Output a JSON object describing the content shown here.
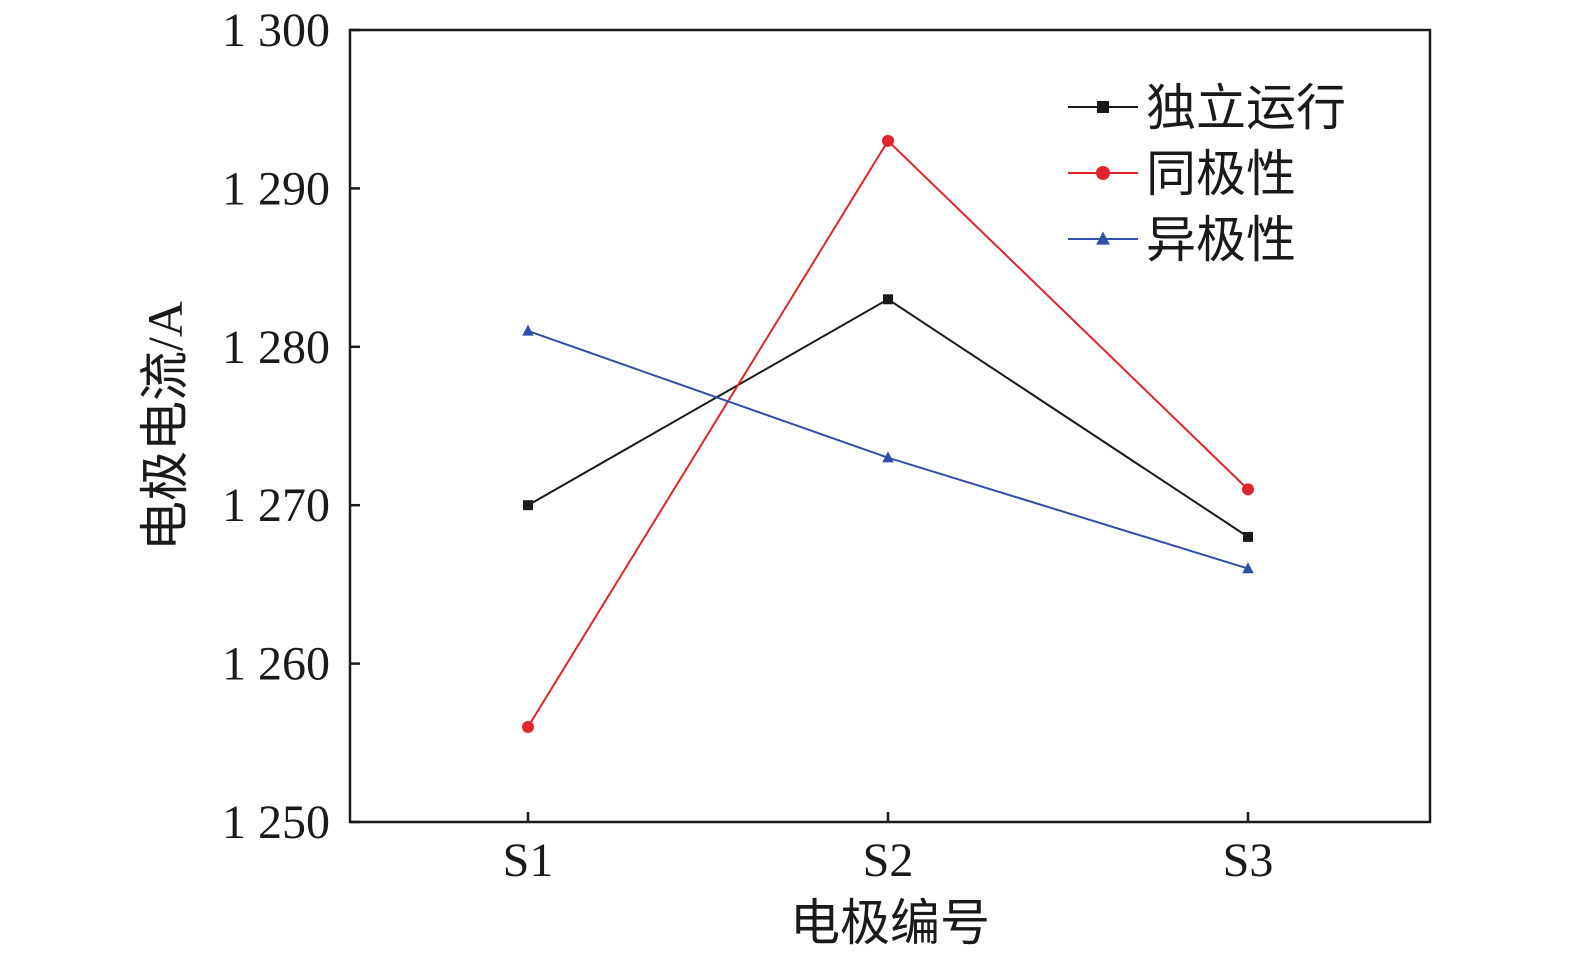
{
  "chart_data": {
    "type": "line",
    "title": "",
    "xlabel": "电极编号",
    "ylabel": "电极电流/A",
    "categories": [
      "S1",
      "S2",
      "S3"
    ],
    "ylim": [
      1250,
      1300
    ],
    "yticks": [
      1250,
      1260,
      1270,
      1280,
      1290,
      1300
    ],
    "ytick_labels": [
      "1 250",
      "1 260",
      "1 270",
      "1 280",
      "1 290",
      "1 300"
    ],
    "grid": false,
    "legend_position": "top-right",
    "series": [
      {
        "name": "独立运行",
        "values": [
          1270,
          1283,
          1268
        ],
        "color": "#1a1a1a",
        "marker": "square"
      },
      {
        "name": "同极性",
        "values": [
          1256,
          1293,
          1271
        ],
        "color": "#e0242b",
        "marker": "circle"
      },
      {
        "name": "异极性",
        "values": [
          1281,
          1273,
          1266
        ],
        "color": "#2f4fa8",
        "marker": "triangle"
      }
    ]
  }
}
